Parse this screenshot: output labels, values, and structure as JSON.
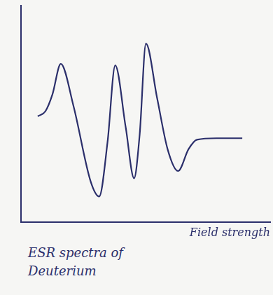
{
  "chart_data": {
    "type": "line",
    "title": "ESR spectra of Deuterium",
    "x_label": "Field strength",
    "x": [
      24,
      35,
      45,
      57,
      75,
      100,
      112,
      124,
      135,
      150,
      162,
      170,
      179,
      195,
      210,
      225,
      240,
      252,
      280,
      317
    ],
    "values": [
      145,
      152,
      175,
      217,
      160,
      55,
      35,
      110,
      215,
      130,
      60,
      120,
      245,
      170,
      100,
      70,
      100,
      113,
      115,
      115
    ],
    "color": "#2b2f6b",
    "xlim": [
      0,
      357
    ],
    "ylim": [
      0,
      297
    ],
    "tick_labels": false,
    "grid": false
  }
}
